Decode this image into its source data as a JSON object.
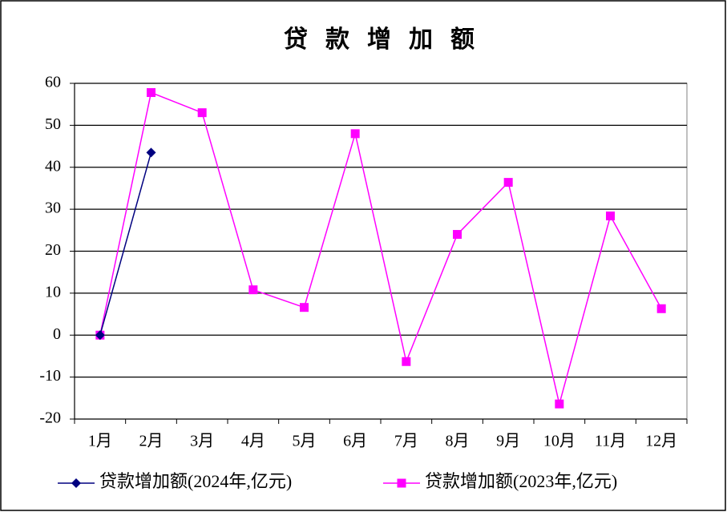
{
  "chart_data": {
    "type": "line",
    "title": "贷款增加额",
    "categories": [
      "1月",
      "2月",
      "3月",
      "4月",
      "5月",
      "6月",
      "7月",
      "8月",
      "9月",
      "10月",
      "11月",
      "12月"
    ],
    "series": [
      {
        "name": "贷款增加额(2024年,亿元)",
        "color": "#000080",
        "marker": "diamond",
        "values": [
          0,
          43.5,
          null,
          null,
          null,
          null,
          null,
          null,
          null,
          null,
          null,
          null
        ]
      },
      {
        "name": "贷款增加额(2023年,亿元)",
        "color": "#ff00ff",
        "marker": "square",
        "values": [
          0,
          57.8,
          53.0,
          10.8,
          6.6,
          48.0,
          -6.3,
          24.0,
          36.4,
          -16.4,
          28.4,
          6.3
        ]
      }
    ],
    "ylim": [
      -20,
      60
    ],
    "yticks": [
      -20,
      -10,
      0,
      10,
      20,
      30,
      40,
      50,
      60
    ],
    "grid": true,
    "legend": "bottom"
  }
}
